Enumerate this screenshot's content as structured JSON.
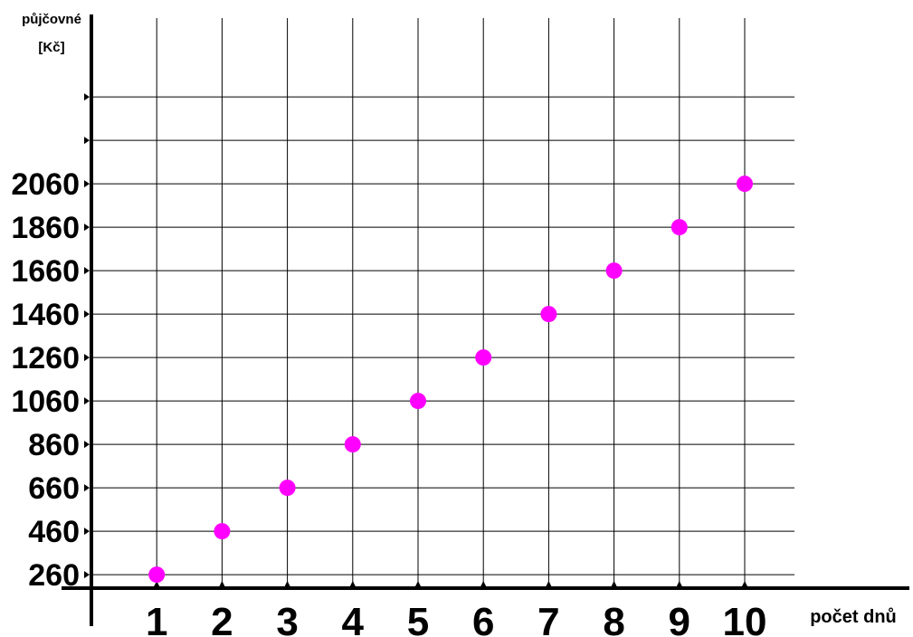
{
  "chart_data": {
    "type": "scatter",
    "title": "",
    "xlabel": "počet dnů",
    "ylabel_lines": [
      "půjčovné",
      "[Kč]"
    ],
    "x": [
      1,
      2,
      3,
      4,
      5,
      6,
      7,
      8,
      9,
      10
    ],
    "y": [
      260,
      460,
      660,
      860,
      1060,
      1260,
      1460,
      1660,
      1860,
      2060
    ],
    "xticks": [
      "1",
      "2",
      "3",
      "4",
      "5",
      "6",
      "7",
      "8",
      "9",
      "10"
    ],
    "yticks": [
      "260",
      "460",
      "660",
      "860",
      "1060",
      "1260",
      "1460",
      "1660",
      "1860",
      "2060"
    ],
    "xlim": [
      0,
      11
    ],
    "ylim": [
      60,
      2460
    ],
    "grid": true,
    "marker_color": "#ff00ff",
    "grid_color": "#000000"
  }
}
